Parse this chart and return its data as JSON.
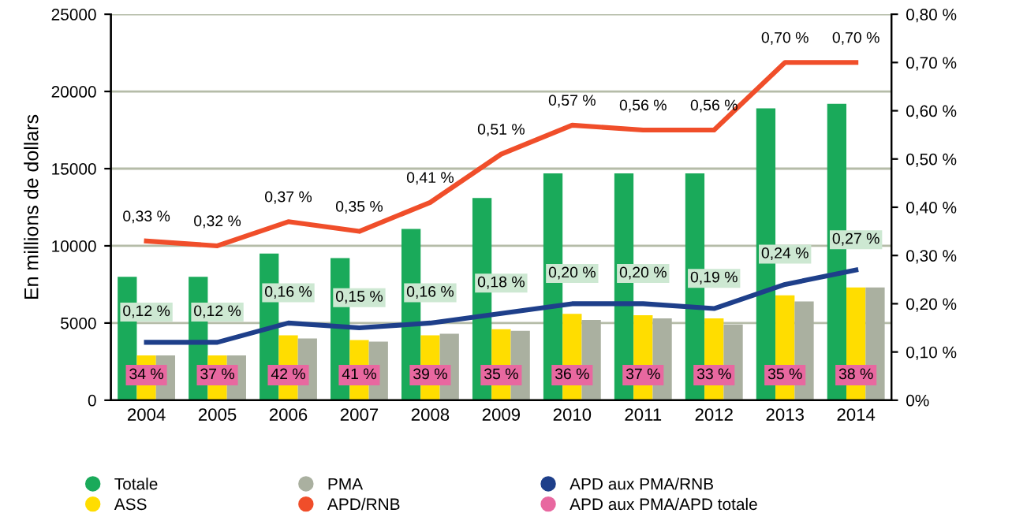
{
  "chart_data": {
    "type": "bar",
    "ylabel": "En millions de dollars",
    "categories": [
      "2004",
      "2005",
      "2006",
      "2007",
      "2008",
      "2009",
      "2010",
      "2011",
      "2012",
      "2013",
      "2014"
    ],
    "series": [
      {
        "name": "Totale",
        "color": "#1aaa5a",
        "values": [
          8000,
          8000,
          9500,
          9200,
          11100,
          13100,
          14700,
          14700,
          14700,
          18900,
          19200
        ]
      },
      {
        "name": "ASS",
        "color": "#ffdd00",
        "values": [
          2900,
          2900,
          4200,
          3900,
          4200,
          4600,
          5600,
          5500,
          5300,
          6800,
          7300
        ]
      },
      {
        "name": "PMA",
        "color": "#aab0a0",
        "values": [
          2900,
          2900,
          4000,
          3800,
          4300,
          4500,
          5200,
          5300,
          4900,
          6400,
          7300
        ]
      },
      {
        "name": "APD/RNB",
        "type": "line",
        "axis": "y2",
        "color": "#f04e2a",
        "values": [
          0.33,
          0.32,
          0.37,
          0.35,
          0.41,
          0.51,
          0.57,
          0.56,
          0.56,
          0.7,
          0.7
        ],
        "value_labels": [
          "0,33 %",
          "0,32 %",
          "0,37 %",
          "0,35 %",
          "0,41 %",
          "0,51 %",
          "0,57 %",
          "0,56 %",
          "0,56 %",
          "0,70 %",
          "0,70 %"
        ]
      },
      {
        "name": "APD aux PMA/RNB",
        "type": "line",
        "axis": "y2",
        "color": "#1e3f8a",
        "values": [
          0.12,
          0.12,
          0.16,
          0.15,
          0.16,
          0.18,
          0.2,
          0.2,
          0.19,
          0.24,
          0.27
        ],
        "value_labels": [
          "0,12 %",
          "0,12 %",
          "0,16 %",
          "0,15 %",
          "0,16 %",
          "0,18 %",
          "0,20 %",
          "0,20 %",
          "0,19 %",
          "0,24 %",
          "0,27 %"
        ]
      },
      {
        "name": "APD aux PMA/APD totale",
        "type": "other",
        "color": "#e868a0",
        "values": [
          null,
          null,
          null,
          null,
          null,
          null,
          null,
          null,
          null,
          null,
          null
        ],
        "value_labels": [
          "34 %",
          "37 %",
          "42 %",
          "41 %",
          "39 %",
          "35 %",
          "36 %",
          "37 %",
          "33 %",
          "35 %",
          "38 %"
        ]
      }
    ],
    "ylim": [
      0,
      25000
    ],
    "yticks": [
      0,
      5000,
      10000,
      15000,
      20000,
      25000
    ],
    "y2lim": [
      0,
      0.8
    ],
    "y2ticks": [
      {
        "value": 0,
        "label": "0%"
      },
      {
        "value": 0.1,
        "label": "0,10 %"
      },
      {
        "value": 0.2,
        "label": "0,20 %"
      },
      {
        "value": 0.3,
        "label": "0,30 %"
      },
      {
        "value": 0.4,
        "label": "0,40 %"
      },
      {
        "value": 0.5,
        "label": "0,50 %"
      },
      {
        "value": 0.6,
        "label": "0,60 %"
      },
      {
        "value": 0.7,
        "label": "0,70 %"
      },
      {
        "value": 0.8,
        "label": "0,80 %"
      }
    ],
    "grid": "y",
    "legend": "bottom"
  }
}
